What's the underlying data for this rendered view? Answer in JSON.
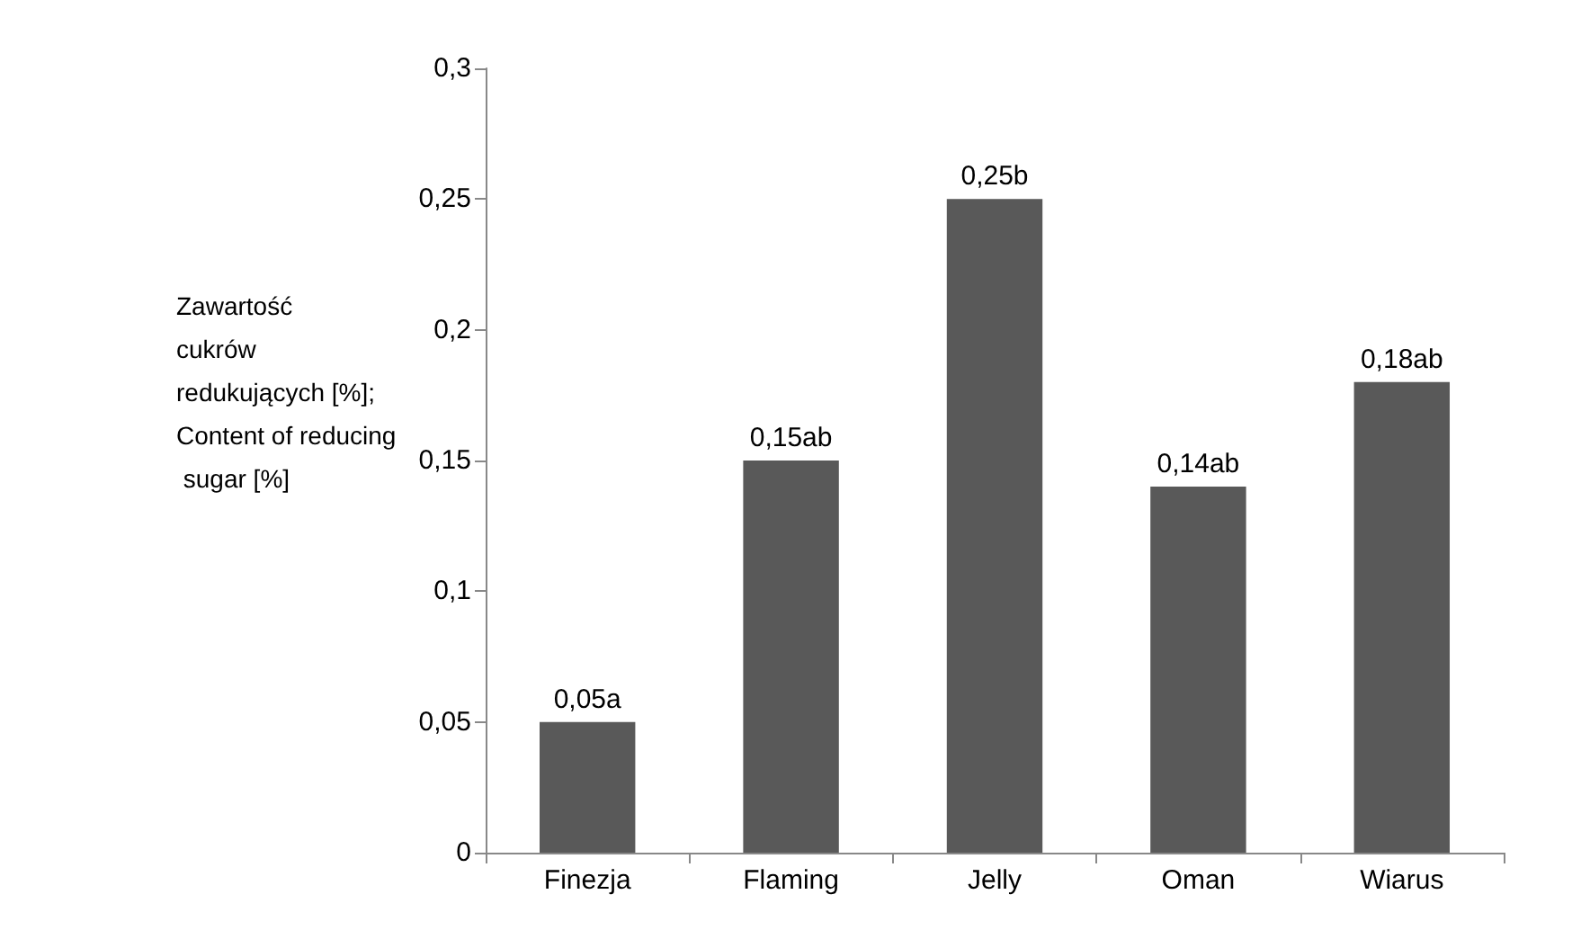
{
  "chart_data": {
    "type": "bar",
    "ylabel": "Zawartość cukrów redukujących [%]; Content of reducing sugar [%]",
    "categories": [
      "Finezja",
      "Flaming",
      "Jelly",
      "Oman",
      "Wiarus"
    ],
    "values": [
      0.05,
      0.15,
      0.25,
      0.14,
      0.18
    ],
    "value_labels": [
      "0,05a",
      "0,15ab",
      "0,25b",
      "0,14ab",
      "0,18ab"
    ],
    "color": "#595959",
    "ylim": [
      0,
      0.3
    ],
    "yticks": [
      0,
      {
        "value": 0.05,
        "label": "0,05"
      },
      {
        "value": 0.1,
        "label": "0,1"
      },
      {
        "value": 0.15,
        "label": "0,15"
      },
      {
        "value": 0.2,
        "label": "0,2"
      },
      {
        "value": 0.25,
        "label": "0,25"
      },
      {
        "value": 0.3,
        "label": "0,3"
      }
    ],
    "grid": false
  }
}
